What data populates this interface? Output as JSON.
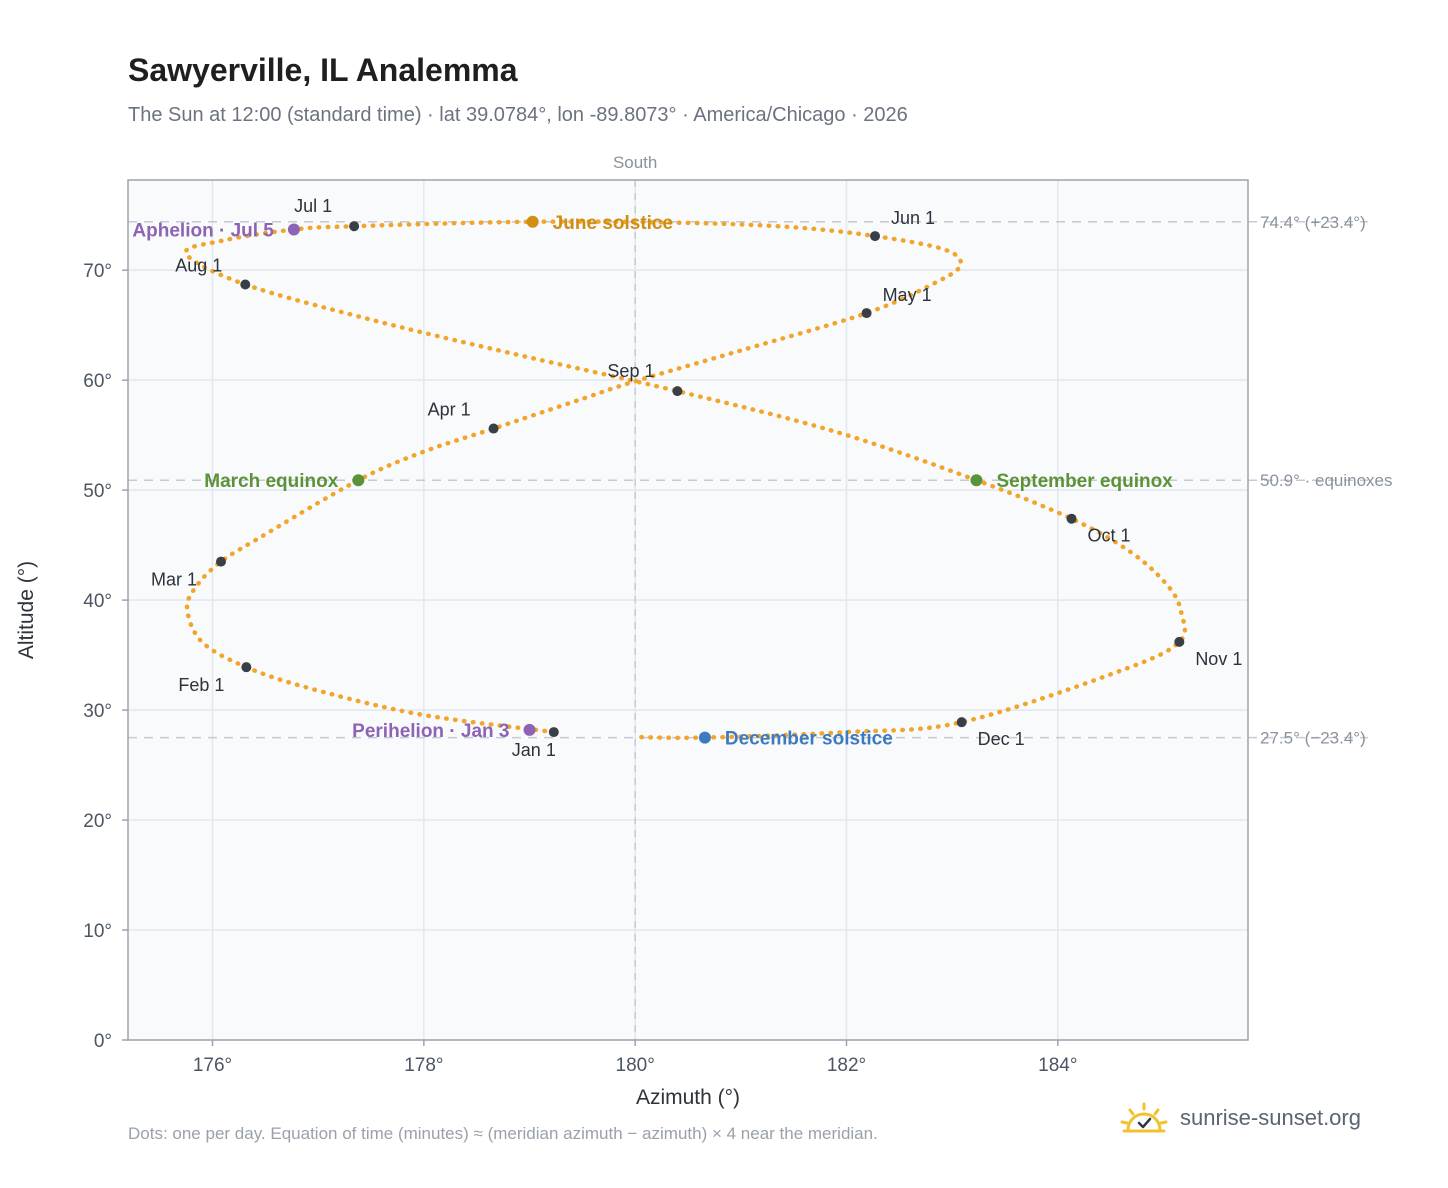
{
  "title": "Sawyerville, IL Analemma",
  "subtitle": "The Sun at 12:00 (standard time) · lat 39.0784°, lon -89.8073° · America/Chicago · 2026",
  "footnote": "Dots: one per day. Equation of time (minutes) ≈ (meridian azimuth − azimuth) × 4 near the meridian.",
  "brand": {
    "text": "sunrise-sunset.org",
    "icon": "sun-check-icon"
  },
  "colors": {
    "path": "#f2a52a",
    "month": "#3a3f46",
    "orbit": "#8f63b3",
    "equinox": "#5c9338",
    "june": "#cf8f14",
    "december": "#3d7ac0",
    "grid": "#e2e8f0",
    "plot_bg": "#f8fafc",
    "ref": "#c4cbd3"
  },
  "chart_data": {
    "type": "scatter",
    "xlabel": "Azimuth (°)",
    "ylabel": "Altitude (°)",
    "xlim": [
      175.2,
      185.8
    ],
    "ylim": [
      0,
      78.2
    ],
    "xticks": [
      176,
      178,
      180,
      182,
      184
    ],
    "xtick_labels": [
      "176°",
      "178°",
      "180°",
      "182°",
      "184°"
    ],
    "yticks": [
      0,
      10,
      20,
      30,
      40,
      50,
      60,
      70
    ],
    "ytick_labels": [
      "0°",
      "10°",
      "20°",
      "30°",
      "40°",
      "50°",
      "60°",
      "70°"
    ],
    "meridian": {
      "x": 180,
      "label": "South"
    },
    "reference_lines": [
      {
        "y": 74.4,
        "label": "74.4° (+23.4°)"
      },
      {
        "y": 50.9,
        "label": "50.9° · equinoxes"
      },
      {
        "y": 27.5,
        "label": "27.5° (−23.4°)"
      }
    ],
    "analemma_path": [
      [
        179.23,
        28.0
      ],
      [
        177.97,
        29.6
      ],
      [
        176.95,
        31.9
      ],
      [
        176.32,
        33.9
      ],
      [
        175.9,
        36.2
      ],
      [
        175.76,
        39.2
      ],
      [
        175.85,
        41.3
      ],
      [
        176.08,
        43.5
      ],
      [
        176.45,
        45.7
      ],
      [
        177.38,
        50.9
      ],
      [
        178.0,
        53.5
      ],
      [
        178.66,
        55.6
      ],
      [
        179.5,
        58.3
      ],
      [
        180.0,
        59.9
      ],
      [
        181.0,
        62.7
      ],
      [
        182.19,
        66.1
      ],
      [
        182.85,
        68.9
      ],
      [
        183.08,
        70.5
      ],
      [
        182.92,
        71.9
      ],
      [
        182.27,
        73.1
      ],
      [
        181.5,
        73.9
      ],
      [
        180.5,
        74.3
      ],
      [
        179.0,
        74.4
      ],
      [
        177.34,
        74.0
      ],
      [
        176.77,
        73.7
      ],
      [
        176.1,
        72.7
      ],
      [
        175.75,
        71.5
      ],
      [
        176.31,
        68.7
      ],
      [
        177.5,
        65.5
      ],
      [
        178.8,
        62.5
      ],
      [
        180.4,
        59.0
      ],
      [
        181.9,
        55.3
      ],
      [
        183.23,
        50.9
      ],
      [
        184.13,
        47.4
      ],
      [
        184.7,
        44.3
      ],
      [
        185.05,
        41.2
      ],
      [
        185.17,
        38.8
      ],
      [
        185.15,
        36.2
      ],
      [
        184.6,
        33.6
      ],
      [
        183.09,
        28.9
      ],
      [
        182.0,
        28.0
      ],
      [
        180.66,
        27.5
      ],
      [
        180.0,
        27.55
      ]
    ],
    "month_markers": [
      {
        "label": "Jan 1",
        "x": 179.23,
        "y": 28.0
      },
      {
        "label": "Feb 1",
        "x": 176.32,
        "y": 33.9
      },
      {
        "label": "Mar 1",
        "x": 176.08,
        "y": 43.5
      },
      {
        "label": "Apr 1",
        "x": 178.66,
        "y": 55.6
      },
      {
        "label": "May 1",
        "x": 182.19,
        "y": 66.1
      },
      {
        "label": "Jun 1",
        "x": 182.27,
        "y": 73.1
      },
      {
        "label": "Jul 1",
        "x": 177.34,
        "y": 74.0
      },
      {
        "label": "Aug 1",
        "x": 176.31,
        "y": 68.7
      },
      {
        "label": "Sep 1",
        "x": 180.4,
        "y": 59.0
      },
      {
        "label": "Oct 1",
        "x": 184.13,
        "y": 47.4
      },
      {
        "label": "Nov 1",
        "x": 185.15,
        "y": 36.2
      },
      {
        "label": "Dec 1",
        "x": 183.09,
        "y": 28.9
      }
    ],
    "events": [
      {
        "label": "Perihelion · Jan 3",
        "x": 179.0,
        "y": 28.2,
        "color": "#8f63b3"
      },
      {
        "label": "Aphelion · Jul 5",
        "x": 176.77,
        "y": 73.7,
        "color": "#8f63b3"
      },
      {
        "label": "March equinox",
        "x": 177.38,
        "y": 50.9,
        "color": "#5c9338"
      },
      {
        "label": "September equinox",
        "x": 183.23,
        "y": 50.9,
        "color": "#5c9338"
      },
      {
        "label": "June solstice",
        "x": 179.03,
        "y": 74.4,
        "color": "#cf8f14"
      },
      {
        "label": "December solstice",
        "x": 180.66,
        "y": 27.5,
        "color": "#3d7ac0"
      }
    ]
  }
}
